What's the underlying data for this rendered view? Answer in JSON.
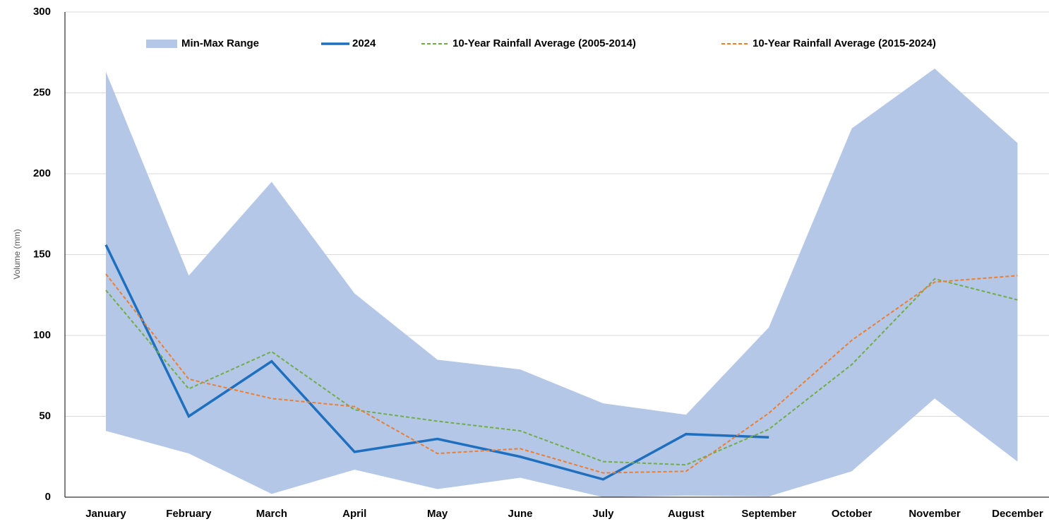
{
  "chart_data": {
    "type": "line",
    "y_label": "Volume (mm)",
    "categories": [
      "January",
      "February",
      "March",
      "April",
      "May",
      "June",
      "July",
      "August",
      "September",
      "October",
      "November",
      "December"
    ],
    "ylim": [
      0,
      300
    ],
    "yticks": [
      0,
      50,
      100,
      150,
      200,
      250,
      300
    ],
    "grid": true,
    "legend": "top",
    "range": {
      "name": "Min-Max Range",
      "color": "#b4c7e7",
      "min": [
        41,
        27,
        2,
        17,
        5,
        12,
        0,
        1,
        0.5,
        16,
        61,
        22
      ],
      "max": [
        263,
        137,
        195,
        126,
        85,
        79,
        58,
        51,
        105,
        228,
        265,
        219
      ]
    },
    "series": [
      {
        "name": "2024",
        "color": "#1f6fbf",
        "dash": false,
        "values": [
          156,
          50,
          84,
          28,
          36,
          25,
          11,
          39,
          37,
          null,
          null,
          null
        ]
      },
      {
        "name": "10-Year Rainfall Average (2005-2014)",
        "color": "#70ad47",
        "dash": true,
        "values": [
          128,
          67,
          90,
          54,
          47,
          41,
          22,
          20,
          42,
          82,
          135,
          122
        ]
      },
      {
        "name": "10-Year Rainfall Average (2015-2024)",
        "color": "#ed7d31",
        "dash": true,
        "values": [
          138,
          73,
          61,
          56,
          27,
          30,
          15,
          16,
          52,
          97,
          133,
          137
        ]
      }
    ]
  }
}
